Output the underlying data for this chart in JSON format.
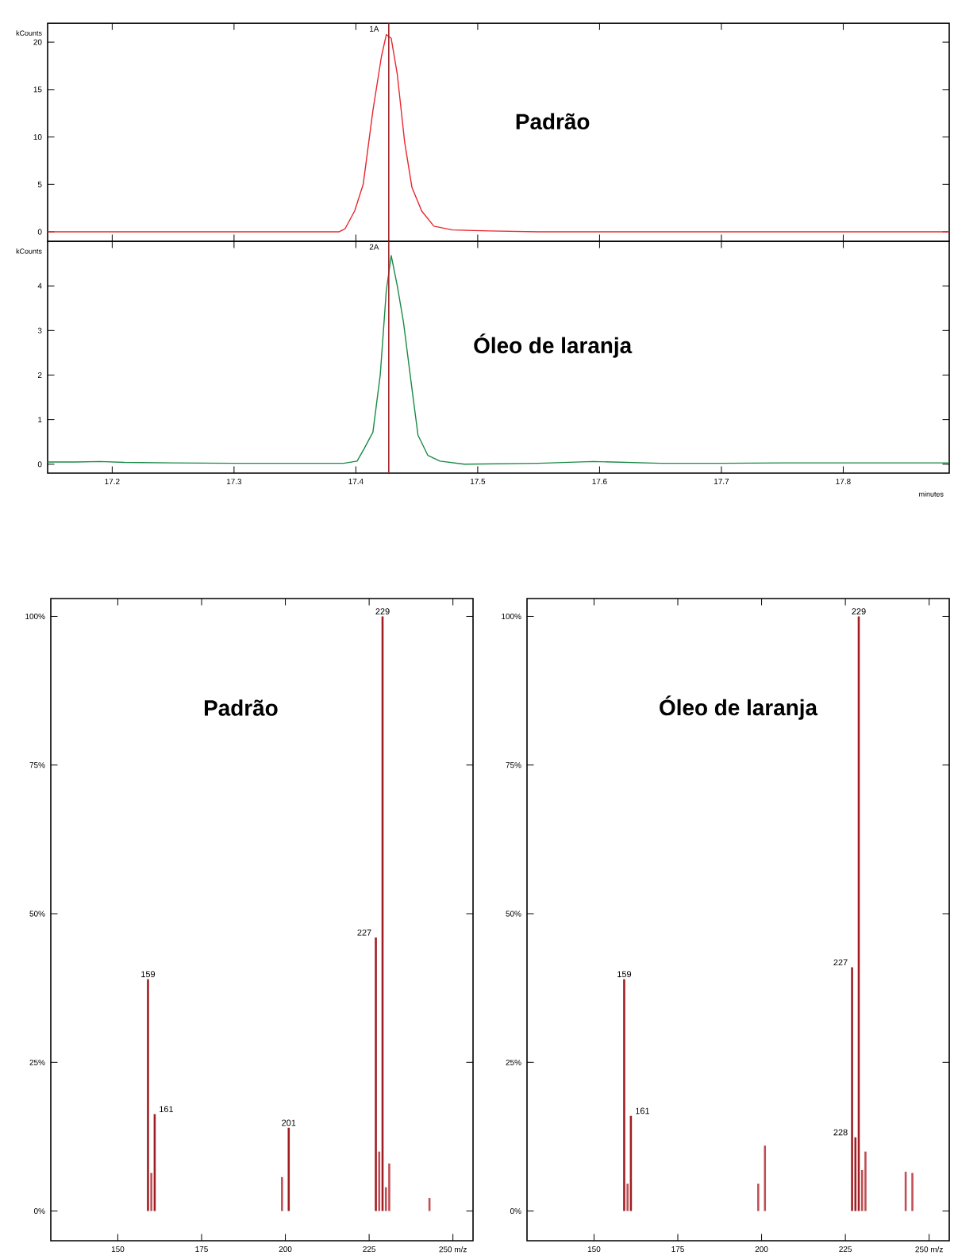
{
  "chart_data": [
    {
      "type": "line",
      "title": "Padrão",
      "ylabel": "kCounts",
      "x": [
        17.147,
        17.2,
        17.25,
        17.3,
        17.35,
        17.386,
        17.391,
        17.399,
        17.406,
        17.414,
        17.421,
        17.425,
        17.429,
        17.434,
        17.44,
        17.446,
        17.454,
        17.464,
        17.479,
        17.509,
        17.55,
        17.6,
        17.65,
        17.7,
        17.75,
        17.8,
        17.887
      ],
      "series": [
        {
          "color": "#e8262e",
          "values": [
            0,
            0,
            0,
            0,
            0,
            0,
            0.3,
            2.2,
            5,
            12.8,
            18.5,
            20.8,
            20.4,
            16.6,
            9.5,
            4.7,
            2.2,
            0.6,
            0.2,
            0.1,
            0,
            0,
            0,
            0,
            0,
            0,
            0
          ]
        }
      ],
      "xlim": [
        17.147,
        17.887
      ],
      "ylim": [
        -1,
        22
      ],
      "xticks": [
        17.2,
        17.3,
        17.4,
        17.5,
        17.6,
        17.7,
        17.8
      ],
      "yticks": [
        0,
        5,
        10,
        15,
        20
      ],
      "tick_labels": "y",
      "ref_lines": [
        {
          "axis": "x",
          "value": 17.427,
          "label": "1A",
          "color": "#a0282d"
        }
      ]
    },
    {
      "type": "line",
      "title": "Óleo de laranja",
      "ylabel": "kCounts",
      "xlabel": "minutes",
      "x": [
        17.147,
        17.17,
        17.19,
        17.21,
        17.25,
        17.3,
        17.35,
        17.39,
        17.401,
        17.407,
        17.414,
        17.42,
        17.425,
        17.429,
        17.434,
        17.439,
        17.446,
        17.451,
        17.459,
        17.469,
        17.489,
        17.55,
        17.595,
        17.65,
        17.7,
        17.75,
        17.8,
        17.887
      ],
      "series": [
        {
          "color": "#1a8a46",
          "values": [
            0.05,
            0.05,
            0.06,
            0.04,
            0.03,
            0.02,
            0.02,
            0.02,
            0.07,
            0.36,
            0.72,
            2.0,
            3.9,
            4.68,
            4.0,
            3.2,
            1.7,
            0.65,
            0.2,
            0.07,
            0,
            0.02,
            0.06,
            0.02,
            0.02,
            0.03,
            0.03,
            0.03
          ]
        }
      ],
      "xlim": [
        17.147,
        17.887
      ],
      "ylim": [
        -0.2,
        5.0
      ],
      "xticks": [
        17.2,
        17.3,
        17.4,
        17.5,
        17.6,
        17.7,
        17.8
      ],
      "yticks": [
        0,
        1,
        2,
        3,
        4
      ],
      "ref_lines": [
        {
          "axis": "x",
          "value": 17.427,
          "label": "2A",
          "color": "#a0282d"
        }
      ]
    },
    {
      "type": "bar",
      "title": "Padrão",
      "x": [
        159,
        160,
        161,
        199,
        201,
        227,
        228,
        229,
        230,
        231,
        243
      ],
      "values": [
        39,
        6.4,
        16.3,
        5.7,
        14,
        46,
        10,
        100,
        4,
        8,
        2.2
      ],
      "colors": [
        "#a01e23",
        "#c05055",
        "#a01e23",
        "#c05055",
        "#a01e23",
        "#a01e23",
        "#c05055",
        "#a01e23",
        "#c05055",
        "#c05055",
        "#c05055"
      ],
      "annotations": [
        {
          "text": "159",
          "x": 159,
          "y": 39
        },
        {
          "text": "161",
          "x": 161,
          "y": 16.3
        },
        {
          "text": "201",
          "x": 201,
          "y": 14
        },
        {
          "text": "227",
          "x": 227,
          "y": 46
        },
        {
          "text": "229",
          "x": 229,
          "y": 100
        }
      ],
      "xlim": [
        130,
        256
      ],
      "ylim": [
        -5,
        103
      ],
      "xticks": [
        150,
        175,
        200,
        225,
        {
          "value": 250,
          "label": "250 m/z"
        }
      ],
      "yticks": [
        {
          "value": 0,
          "label": "0%"
        },
        {
          "value": 25,
          "label": "25%"
        },
        {
          "value": 50,
          "label": "50%"
        },
        {
          "value": 75,
          "label": "75%"
        },
        {
          "value": 100,
          "label": "100%"
        }
      ]
    },
    {
      "type": "bar",
      "title": "Óleo de laranja",
      "x": [
        159,
        160,
        161,
        199,
        201,
        227,
        228,
        229,
        230,
        231,
        243,
        245
      ],
      "values": [
        39,
        4.6,
        16,
        4.6,
        11,
        41,
        12.4,
        100,
        6.9,
        10,
        6.6,
        6.4
      ],
      "colors": [
        "#a01e23",
        "#c05055",
        "#a01e23",
        "#c05055",
        "#c05055",
        "#a01e23",
        "#a01e23",
        "#a01e23",
        "#c05055",
        "#c05055",
        "#c05055",
        "#c05055"
      ],
      "annotations": [
        {
          "text": "159",
          "x": 159,
          "y": 39
        },
        {
          "text": "161",
          "x": 161,
          "y": 16
        },
        {
          "text": "227",
          "x": 227,
          "y": 41
        },
        {
          "text": "228",
          "x": 228,
          "y": 12.4
        },
        {
          "text": "229",
          "x": 229,
          "y": 100
        }
      ],
      "xlim": [
        130,
        256
      ],
      "ylim": [
        -5,
        103
      ],
      "xticks": [
        150,
        175,
        200,
        225,
        {
          "value": 250,
          "label": "250 m/z"
        }
      ],
      "yticks": [
        {
          "value": 0,
          "label": "0%"
        },
        {
          "value": 25,
          "label": "25%"
        },
        {
          "value": 50,
          "label": "50%"
        },
        {
          "value": 75,
          "label": "75%"
        },
        {
          "value": 100,
          "label": "100%"
        }
      ]
    }
  ]
}
